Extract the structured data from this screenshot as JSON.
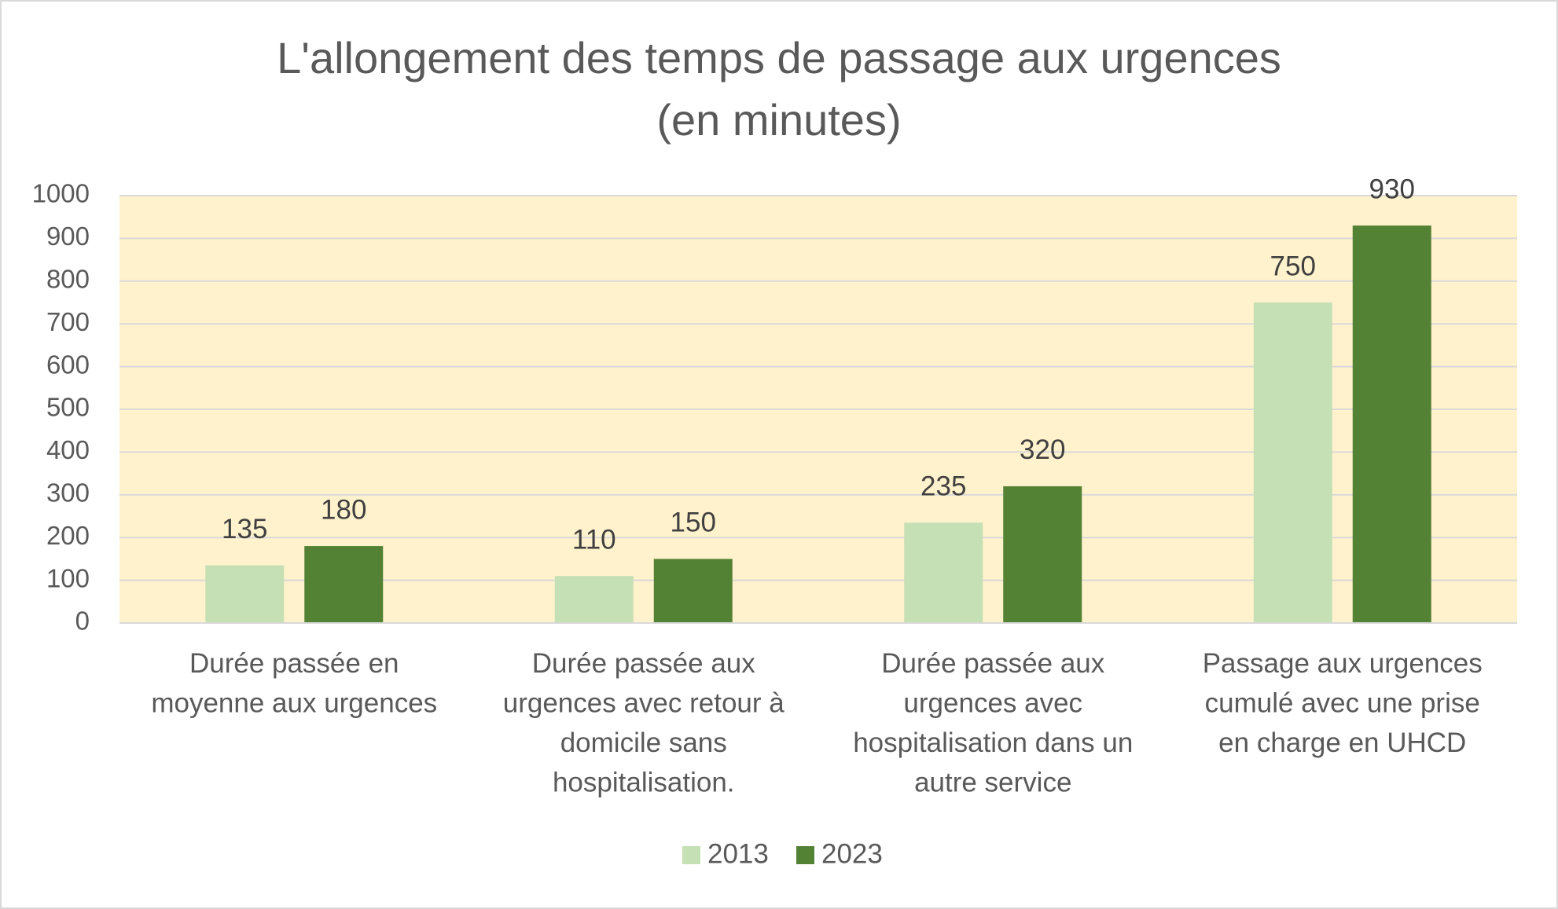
{
  "chart_data": {
    "type": "bar",
    "title": [
      "L'allongement des temps de passage aux urgences",
      "(en minutes)"
    ],
    "categories": [
      "Durée passée en moyenne aux urgences",
      "Durée passée aux urgences avec retour à domicile sans hospitalisation.",
      "Durée passée aux urgences avec hospitalisation dans un autre service",
      "Passage aux urgences cumulé avec une prise en charge en UHCD"
    ],
    "series": [
      {
        "name": "2013",
        "color": "#c5e0b4",
        "values": [
          135,
          110,
          235,
          750
        ]
      },
      {
        "name": "2023",
        "color": "#548235",
        "values": [
          180,
          150,
          320,
          930
        ]
      }
    ],
    "ylim": [
      0,
      1000
    ],
    "yticks": [
      0,
      100,
      200,
      300,
      400,
      500,
      600,
      700,
      800,
      900,
      1000
    ],
    "grid": true,
    "legend": "bottom",
    "plot_background": "#fff2cc"
  }
}
